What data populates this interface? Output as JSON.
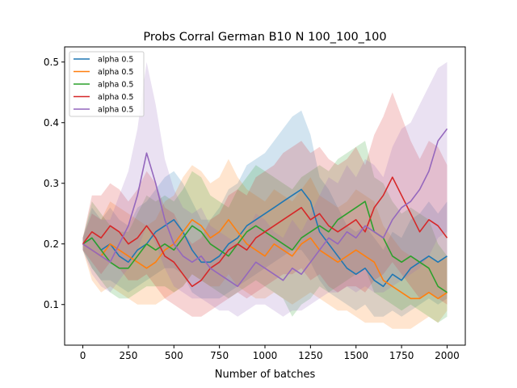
{
  "chart_data": {
    "type": "line",
    "title": "Probs Corral German B10 N 100_100_100",
    "xlabel": "Number of batches",
    "ylabel": "",
    "xlim": [
      -100,
      2100
    ],
    "ylim": [
      0.033,
      0.525
    ],
    "xticks": [
      0,
      250,
      500,
      750,
      1000,
      1250,
      1500,
      1750,
      2000
    ],
    "yticks": [
      0.1,
      0.2,
      0.3,
      0.4,
      0.5
    ],
    "xtick_labels": [
      "0",
      "250",
      "500",
      "750",
      "1000",
      "1250",
      "1500",
      "1750",
      "2000"
    ],
    "ytick_labels": [
      "0.1",
      "0.2",
      "0.3",
      "0.4",
      "0.5"
    ],
    "grid": false,
    "legend_position": "top-left",
    "shaded_band": "approximate min–max range around each series",
    "series": [
      {
        "name": "alpha 0.5",
        "color": "#1f77b4",
        "x": [
          0,
          50,
          100,
          150,
          200,
          250,
          300,
          350,
          400,
          450,
          500,
          550,
          600,
          650,
          700,
          750,
          800,
          850,
          900,
          950,
          1000,
          1050,
          1100,
          1150,
          1200,
          1250,
          1300,
          1350,
          1400,
          1450,
          1500,
          1550,
          1600,
          1650,
          1700,
          1750,
          1800,
          1850,
          1900,
          1950,
          2000
        ],
        "y": [
          0.2,
          0.21,
          0.19,
          0.2,
          0.18,
          0.17,
          0.19,
          0.2,
          0.22,
          0.23,
          0.24,
          0.22,
          0.19,
          0.17,
          0.17,
          0.18,
          0.2,
          0.21,
          0.23,
          0.24,
          0.25,
          0.26,
          0.27,
          0.28,
          0.29,
          0.27,
          0.22,
          0.2,
          0.18,
          0.16,
          0.15,
          0.16,
          0.14,
          0.13,
          0.15,
          0.14,
          0.16,
          0.17,
          0.18,
          0.17,
          0.18
        ],
        "band_low": [
          0.19,
          0.16,
          0.14,
          0.14,
          0.13,
          0.12,
          0.13,
          0.14,
          0.15,
          0.16,
          0.16,
          0.15,
          0.12,
          0.11,
          0.11,
          0.11,
          0.12,
          0.13,
          0.14,
          0.15,
          0.16,
          0.17,
          0.18,
          0.19,
          0.19,
          0.17,
          0.14,
          0.12,
          0.11,
          0.1,
          0.09,
          0.1,
          0.08,
          0.08,
          0.09,
          0.08,
          0.09,
          0.1,
          0.11,
          0.1,
          0.11
        ],
        "band_high": [
          0.21,
          0.26,
          0.24,
          0.26,
          0.24,
          0.23,
          0.26,
          0.27,
          0.29,
          0.31,
          0.32,
          0.3,
          0.27,
          0.24,
          0.24,
          0.26,
          0.29,
          0.3,
          0.33,
          0.34,
          0.35,
          0.37,
          0.39,
          0.41,
          0.42,
          0.38,
          0.31,
          0.29,
          0.26,
          0.23,
          0.22,
          0.23,
          0.21,
          0.19,
          0.22,
          0.21,
          0.24,
          0.25,
          0.27,
          0.25,
          0.27
        ]
      },
      {
        "name": "alpha 0.5",
        "color": "#ff7f0e",
        "x": [
          0,
          50,
          100,
          150,
          200,
          250,
          300,
          350,
          400,
          450,
          500,
          550,
          600,
          650,
          700,
          750,
          800,
          850,
          900,
          950,
          1000,
          1050,
          1100,
          1150,
          1200,
          1250,
          1300,
          1350,
          1400,
          1450,
          1500,
          1550,
          1600,
          1650,
          1700,
          1750,
          1800,
          1850,
          1900,
          1950,
          2000
        ],
        "y": [
          0.2,
          0.19,
          0.18,
          0.2,
          0.19,
          0.18,
          0.17,
          0.16,
          0.17,
          0.19,
          0.2,
          0.22,
          0.24,
          0.23,
          0.21,
          0.22,
          0.24,
          0.22,
          0.2,
          0.19,
          0.18,
          0.2,
          0.19,
          0.18,
          0.2,
          0.21,
          0.19,
          0.18,
          0.17,
          0.18,
          0.19,
          0.18,
          0.17,
          0.14,
          0.13,
          0.12,
          0.11,
          0.11,
          0.12,
          0.11,
          0.12
        ],
        "band_low": [
          0.19,
          0.14,
          0.12,
          0.13,
          0.12,
          0.11,
          0.1,
          0.1,
          0.1,
          0.11,
          0.12,
          0.13,
          0.15,
          0.14,
          0.13,
          0.13,
          0.15,
          0.13,
          0.12,
          0.11,
          0.11,
          0.12,
          0.11,
          0.1,
          0.11,
          0.12,
          0.11,
          0.1,
          0.09,
          0.09,
          0.08,
          0.07,
          0.07,
          0.07,
          0.06,
          0.06,
          0.06,
          0.07,
          0.08,
          0.07,
          0.09
        ],
        "band_high": [
          0.21,
          0.25,
          0.24,
          0.27,
          0.26,
          0.25,
          0.24,
          0.23,
          0.24,
          0.27,
          0.28,
          0.31,
          0.33,
          0.32,
          0.3,
          0.31,
          0.34,
          0.31,
          0.29,
          0.28,
          0.27,
          0.29,
          0.28,
          0.27,
          0.29,
          0.31,
          0.28,
          0.27,
          0.26,
          0.27,
          0.29,
          0.28,
          0.27,
          0.23,
          0.21,
          0.19,
          0.18,
          0.17,
          0.18,
          0.17,
          0.18
        ]
      },
      {
        "name": "alpha 0.5",
        "color": "#2ca02c",
        "x": [
          0,
          50,
          100,
          150,
          200,
          250,
          300,
          350,
          400,
          450,
          500,
          550,
          600,
          650,
          700,
          750,
          800,
          850,
          900,
          950,
          1000,
          1050,
          1100,
          1150,
          1200,
          1250,
          1300,
          1350,
          1400,
          1450,
          1500,
          1550,
          1600,
          1650,
          1700,
          1750,
          1800,
          1850,
          1900,
          1950,
          2000
        ],
        "y": [
          0.2,
          0.21,
          0.19,
          0.17,
          0.16,
          0.16,
          0.18,
          0.2,
          0.19,
          0.2,
          0.19,
          0.21,
          0.23,
          0.22,
          0.2,
          0.19,
          0.18,
          0.2,
          0.22,
          0.23,
          0.22,
          0.21,
          0.2,
          0.19,
          0.21,
          0.22,
          0.23,
          0.22,
          0.24,
          0.25,
          0.26,
          0.27,
          0.22,
          0.21,
          0.18,
          0.17,
          0.18,
          0.17,
          0.16,
          0.13,
          0.12
        ],
        "band_low": [
          0.19,
          0.16,
          0.14,
          0.12,
          0.11,
          0.11,
          0.12,
          0.13,
          0.13,
          0.13,
          0.12,
          0.13,
          0.15,
          0.14,
          0.13,
          0.12,
          0.11,
          0.12,
          0.13,
          0.14,
          0.13,
          0.12,
          0.11,
          0.08,
          0.1,
          0.11,
          0.13,
          0.12,
          0.13,
          0.14,
          0.15,
          0.16,
          0.12,
          0.11,
          0.1,
          0.09,
          0.1,
          0.09,
          0.08,
          0.07,
          0.08
        ],
        "band_high": [
          0.21,
          0.27,
          0.25,
          0.23,
          0.22,
          0.22,
          0.25,
          0.28,
          0.27,
          0.28,
          0.27,
          0.29,
          0.32,
          0.31,
          0.28,
          0.27,
          0.26,
          0.29,
          0.31,
          0.33,
          0.32,
          0.31,
          0.3,
          0.29,
          0.31,
          0.32,
          0.33,
          0.32,
          0.34,
          0.35,
          0.36,
          0.37,
          0.31,
          0.3,
          0.27,
          0.25,
          0.26,
          0.25,
          0.24,
          0.2,
          0.18
        ]
      },
      {
        "name": "alpha 0.5",
        "color": "#d62728",
        "x": [
          0,
          50,
          100,
          150,
          200,
          250,
          300,
          350,
          400,
          450,
          500,
          550,
          600,
          650,
          700,
          750,
          800,
          850,
          900,
          950,
          1000,
          1050,
          1100,
          1150,
          1200,
          1250,
          1300,
          1350,
          1400,
          1450,
          1500,
          1550,
          1600,
          1650,
          1700,
          1750,
          1800,
          1850,
          1900,
          1950,
          2000
        ],
        "y": [
          0.2,
          0.22,
          0.21,
          0.23,
          0.22,
          0.2,
          0.21,
          0.23,
          0.21,
          0.18,
          0.17,
          0.15,
          0.13,
          0.14,
          0.16,
          0.17,
          0.19,
          0.2,
          0.19,
          0.21,
          0.22,
          0.23,
          0.24,
          0.25,
          0.26,
          0.24,
          0.25,
          0.23,
          0.22,
          0.23,
          0.24,
          0.22,
          0.26,
          0.28,
          0.31,
          0.28,
          0.25,
          0.22,
          0.24,
          0.23,
          0.21
        ],
        "band_low": [
          0.19,
          0.17,
          0.15,
          0.17,
          0.16,
          0.14,
          0.14,
          0.15,
          0.13,
          0.11,
          0.1,
          0.09,
          0.08,
          0.08,
          0.09,
          0.1,
          0.11,
          0.12,
          0.11,
          0.12,
          0.13,
          0.14,
          0.15,
          0.15,
          0.16,
          0.14,
          0.15,
          0.13,
          0.12,
          0.13,
          0.13,
          0.12,
          0.14,
          0.15,
          0.17,
          0.15,
          0.13,
          0.11,
          0.12,
          0.11,
          0.1
        ],
        "band_high": [
          0.21,
          0.28,
          0.28,
          0.3,
          0.29,
          0.27,
          0.29,
          0.32,
          0.3,
          0.26,
          0.25,
          0.22,
          0.2,
          0.21,
          0.24,
          0.25,
          0.28,
          0.29,
          0.28,
          0.31,
          0.32,
          0.33,
          0.35,
          0.36,
          0.37,
          0.35,
          0.36,
          0.34,
          0.33,
          0.34,
          0.36,
          0.33,
          0.38,
          0.41,
          0.45,
          0.41,
          0.37,
          0.34,
          0.37,
          0.36,
          0.33
        ]
      },
      {
        "name": "alpha 0.5",
        "color": "#9467bd",
        "x": [
          0,
          50,
          100,
          150,
          200,
          250,
          300,
          350,
          400,
          450,
          500,
          550,
          600,
          650,
          700,
          750,
          800,
          850,
          900,
          950,
          1000,
          1050,
          1100,
          1150,
          1200,
          1250,
          1300,
          1350,
          1400,
          1450,
          1500,
          1550,
          1600,
          1650,
          1700,
          1750,
          1800,
          1850,
          1900,
          1950,
          2000
        ],
        "y": [
          0.2,
          0.19,
          0.18,
          0.17,
          0.2,
          0.23,
          0.28,
          0.35,
          0.3,
          0.24,
          0.2,
          0.18,
          0.17,
          0.18,
          0.16,
          0.15,
          0.14,
          0.13,
          0.15,
          0.17,
          0.16,
          0.15,
          0.14,
          0.16,
          0.15,
          0.17,
          0.19,
          0.21,
          0.2,
          0.22,
          0.21,
          0.23,
          0.22,
          0.21,
          0.24,
          0.26,
          0.27,
          0.29,
          0.32,
          0.37,
          0.39
        ],
        "band_low": [
          0.19,
          0.15,
          0.13,
          0.12,
          0.14,
          0.16,
          0.19,
          0.23,
          0.2,
          0.16,
          0.13,
          0.12,
          0.11,
          0.11,
          0.1,
          0.09,
          0.09,
          0.08,
          0.09,
          0.1,
          0.1,
          0.09,
          0.08,
          0.09,
          0.09,
          0.1,
          0.11,
          0.12,
          0.12,
          0.13,
          0.12,
          0.13,
          0.12,
          0.12,
          0.13,
          0.14,
          0.15,
          0.16,
          0.18,
          0.21,
          0.22
        ],
        "band_high": [
          0.21,
          0.25,
          0.24,
          0.24,
          0.28,
          0.32,
          0.39,
          0.5,
          0.43,
          0.34,
          0.29,
          0.26,
          0.25,
          0.26,
          0.23,
          0.22,
          0.21,
          0.2,
          0.22,
          0.25,
          0.24,
          0.22,
          0.21,
          0.24,
          0.22,
          0.25,
          0.28,
          0.31,
          0.3,
          0.33,
          0.31,
          0.34,
          0.33,
          0.31,
          0.36,
          0.39,
          0.4,
          0.43,
          0.46,
          0.49,
          0.5
        ]
      }
    ]
  }
}
